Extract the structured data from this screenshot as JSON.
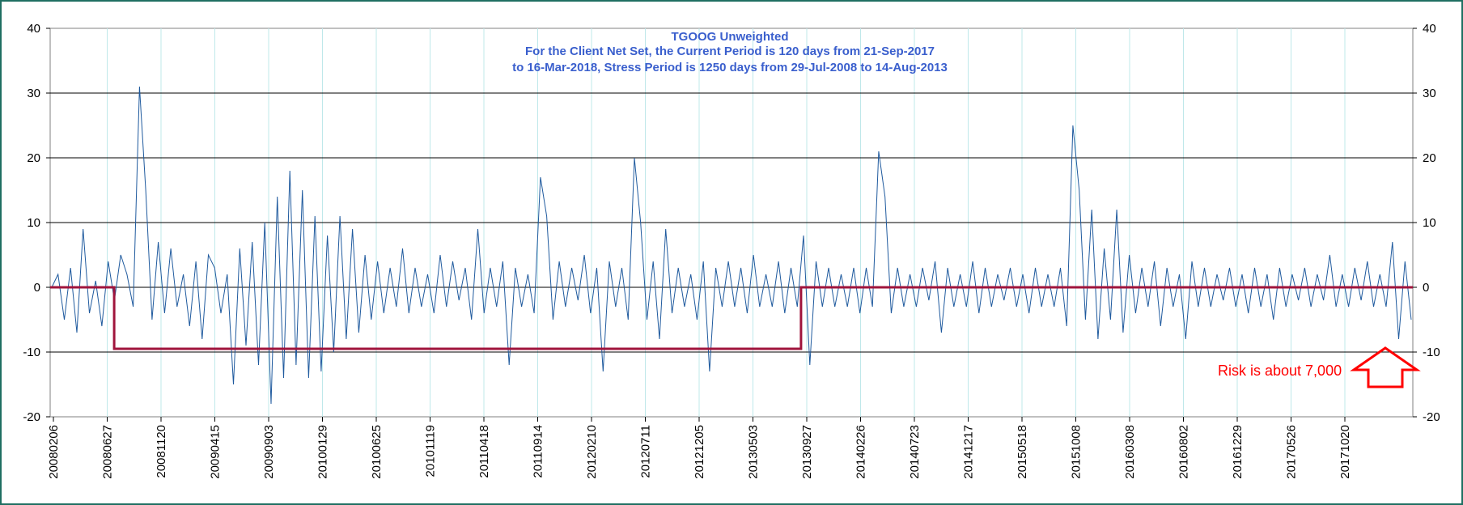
{
  "chart_data": {
    "type": "line",
    "title_lines": [
      "TGOOG      Unweighted",
      "For the Client Net Set, the Current Period is 120 days from 21-Sep-2017",
      "to 16-Mar-2018, Stress Period is 1250 days from 29-Jul-2008 to 14-Aug-2013"
    ],
    "xlabel": "",
    "ylabel": "",
    "ylim": [
      -20,
      40
    ],
    "yticks": [
      -20,
      -10,
      0,
      10,
      20,
      30,
      40
    ],
    "x_tick_labels": [
      "20080206",
      "20080627",
      "20081120",
      "20090415",
      "20090903",
      "20100129",
      "20100625",
      "20101119",
      "20110418",
      "20110914",
      "20120210",
      "20120711",
      "20121205",
      "20130503",
      "20130927",
      "20140226",
      "20140723",
      "20141217",
      "20150518",
      "20151008",
      "20160308",
      "20160802",
      "20161229",
      "20170526",
      "20171020"
    ],
    "grid": true,
    "colors": {
      "series": "#1f5a9e",
      "risk_line": "#a0143c",
      "vertical_grid": "#bfe8ea",
      "annotation": "#ff0000",
      "title": "#3a5fcd",
      "frame": "#1f6f62"
    },
    "series": [
      {
        "values": [
          0,
          2,
          -5,
          3,
          -7,
          9,
          -4,
          1,
          -6,
          4,
          -2,
          5,
          2,
          -3,
          31,
          15,
          -5,
          7,
          -4,
          6,
          -3,
          2,
          -6,
          4,
          -8,
          5,
          3,
          -4,
          2,
          -15,
          6,
          -9,
          7,
          -12,
          10,
          -18,
          14,
          -14,
          18,
          -12,
          15,
          -14,
          11,
          -13,
          8,
          -10,
          11,
          -8,
          9,
          -7,
          5,
          -5,
          4,
          -4,
          3,
          -3,
          6,
          -4,
          3,
          -3,
          2,
          -4,
          5,
          -3,
          4,
          -2,
          3,
          -5,
          9,
          -4,
          3,
          -3,
          4,
          -12,
          3,
          -3,
          2,
          -4,
          17,
          11,
          -5,
          4,
          -3,
          3,
          -2,
          5,
          -4,
          3,
          -13,
          4,
          -3,
          3,
          -5,
          20,
          10,
          -5,
          4,
          -8,
          9,
          -4,
          3,
          -3,
          2,
          -5,
          4,
          -13,
          3,
          -3,
          4,
          -3,
          3,
          -4,
          5,
          -3,
          2,
          -3,
          4,
          -4,
          3,
          -3,
          8,
          -12,
          4,
          -3,
          3,
          -3,
          2,
          -3,
          3,
          -4,
          3,
          -3,
          21,
          14,
          -4,
          3,
          -3,
          2,
          -3,
          3,
          -2,
          4,
          -7,
          3,
          -3,
          2,
          -3,
          4,
          -4,
          3,
          -3,
          2,
          -2,
          3,
          -3,
          2,
          -4,
          3,
          -3,
          2,
          -3,
          3,
          -6,
          25,
          15,
          -5,
          12,
          -8,
          6,
          -5,
          12,
          -7,
          5,
          -4,
          3,
          -3,
          4,
          -6,
          3,
          -3,
          2,
          -8,
          4,
          -3,
          3,
          -3,
          2,
          -2,
          3,
          -3,
          2,
          -4,
          3,
          -3,
          2,
          -5,
          3,
          -3,
          2,
          -2,
          3,
          -3,
          2,
          -2,
          5,
          -3,
          2,
          -3,
          3,
          -2,
          4,
          -3,
          2,
          -3,
          7,
          -8,
          4,
          -5
        ]
      }
    ],
    "risk_line": {
      "segments": [
        {
          "x_start_frac": 0.0,
          "x_end_frac": 0.047,
          "value": 0
        },
        {
          "x_start_frac": 0.047,
          "x_end_frac": 0.551,
          "value": -9.5
        },
        {
          "x_start_frac": 0.551,
          "x_end_frac": 1.0,
          "value": 0
        }
      ]
    },
    "annotation": {
      "text": "Risk is about 7,000",
      "arrow": "up"
    }
  }
}
